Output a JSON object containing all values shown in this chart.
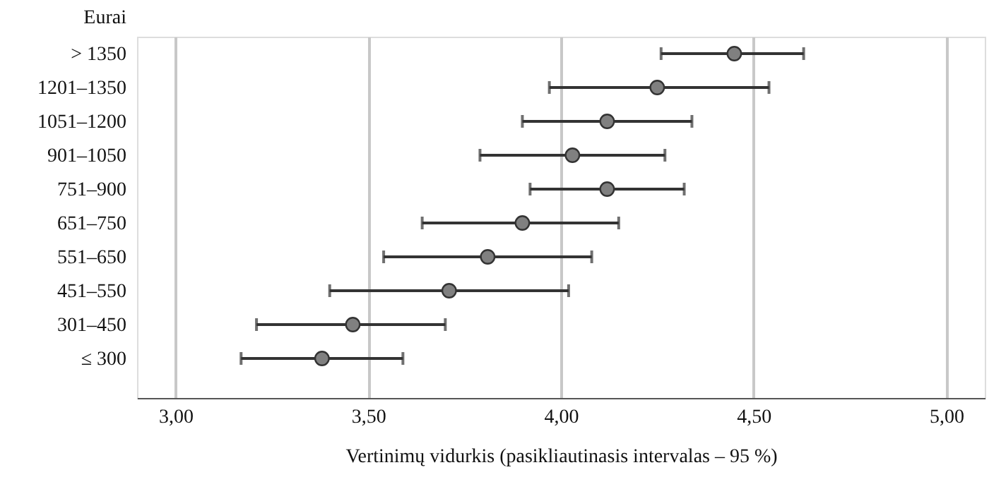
{
  "chart_data": {
    "type": "scatter",
    "orientation": "horizontal",
    "xlabel": "Vertinimų vidurkis (pasikliautinasis intervalas – 95 %)",
    "ylabel": "Eurai",
    "categories": [
      "> 1350",
      "1201–1350",
      "1051–1200",
      "901–1050",
      "751–900",
      "651–750",
      "551–650",
      "451–550",
      "301–450",
      "≤ 300"
    ],
    "values": [
      4.45,
      4.25,
      4.12,
      4.03,
      4.12,
      3.9,
      3.81,
      3.71,
      3.46,
      3.38
    ],
    "errors": [
      [
        4.26,
        4.63
      ],
      [
        3.97,
        4.54
      ],
      [
        3.9,
        4.34
      ],
      [
        3.79,
        4.27
      ],
      [
        3.92,
        4.32
      ],
      [
        3.64,
        4.15
      ],
      [
        3.54,
        4.08
      ],
      [
        3.4,
        4.02
      ],
      [
        3.21,
        3.7
      ],
      [
        3.17,
        3.59
      ]
    ],
    "color": "#808080",
    "marker": "circle",
    "grid": "x",
    "xlim": [
      2.9,
      5.1
    ],
    "xticks": [
      {
        "value": 3,
        "label": "3,00"
      },
      {
        "value": 3.5,
        "label": "3,50"
      },
      {
        "value": 4,
        "label": "4,00"
      },
      {
        "value": 4.5,
        "label": "4,50"
      },
      {
        "value": 5,
        "label": "5,00"
      }
    ]
  }
}
